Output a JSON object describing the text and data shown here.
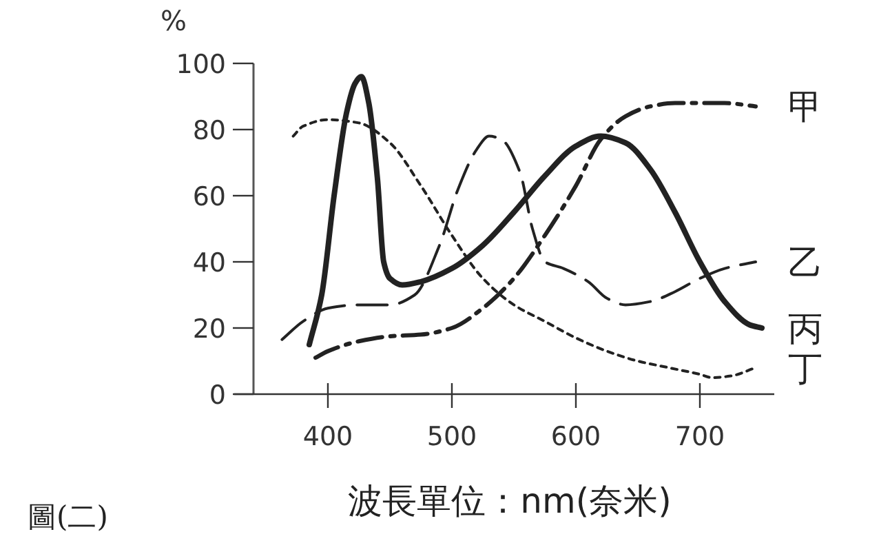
{
  "chart_data": {
    "type": "line",
    "xlabel": "波長單位：nm(奈米)",
    "ylabel": "%",
    "annotations": [
      "圖(二)"
    ],
    "xlim": [
      340,
      760
    ],
    "ylim": [
      0,
      100
    ],
    "xticks": [
      400,
      500,
      600,
      700
    ],
    "yticks": [
      0,
      20,
      40,
      60,
      80,
      100
    ],
    "grid": false,
    "marker": "none",
    "series": [
      {
        "name": "甲",
        "color": "#222222",
        "line_style": "dashdot",
        "x": [
          390,
          400,
          425,
          450,
          475,
          500,
          525,
          550,
          575,
          600,
          620,
          640,
          660,
          680,
          700,
          720,
          745
        ],
        "values": [
          11,
          13,
          16,
          17.5,
          18,
          20,
          26,
          35,
          48,
          63,
          77,
          84,
          87,
          88,
          88,
          88,
          87
        ]
      },
      {
        "name": "乙",
        "color": "#222222",
        "line_style": "dashed",
        "x": [
          363,
          380,
          400,
          425,
          450,
          470,
          490,
          505,
          520,
          530,
          540,
          555,
          565,
          575,
          590,
          610,
          625,
          640,
          660,
          680,
          700,
          720,
          745
        ],
        "values": [
          16.5,
          22,
          26,
          27,
          27,
          30,
          45,
          62,
          74,
          78,
          77,
          67,
          50,
          40,
          38,
          34,
          29,
          27,
          28,
          31,
          35,
          38,
          40
        ]
      },
      {
        "name": "丙",
        "color": "#222222",
        "line_style": "solid",
        "x": [
          385,
          395,
          405,
          415,
          422,
          427,
          433,
          440,
          445,
          450,
          460,
          475,
          500,
          525,
          550,
          575,
          600,
          620,
          640,
          660,
          680,
          700,
          720,
          740,
          750
        ],
        "values": [
          15,
          30,
          60,
          85,
          94,
          96,
          88,
          65,
          40,
          35,
          33,
          34,
          38,
          45,
          55,
          66,
          75,
          78,
          76,
          68,
          55,
          40,
          28,
          21,
          20
        ]
      },
      {
        "name": "丁",
        "color": "#222222",
        "line_style": "dotted",
        "x": [
          372,
          380,
          400,
          425,
          450,
          475,
          500,
          525,
          550,
          575,
          600,
          625,
          650,
          675,
          700,
          710,
          725,
          745
        ],
        "values": [
          78,
          81,
          83,
          82,
          76,
          63,
          48,
          35,
          27,
          22,
          17,
          13,
          10,
          8,
          6,
          5,
          5.5,
          8
        ]
      }
    ]
  }
}
